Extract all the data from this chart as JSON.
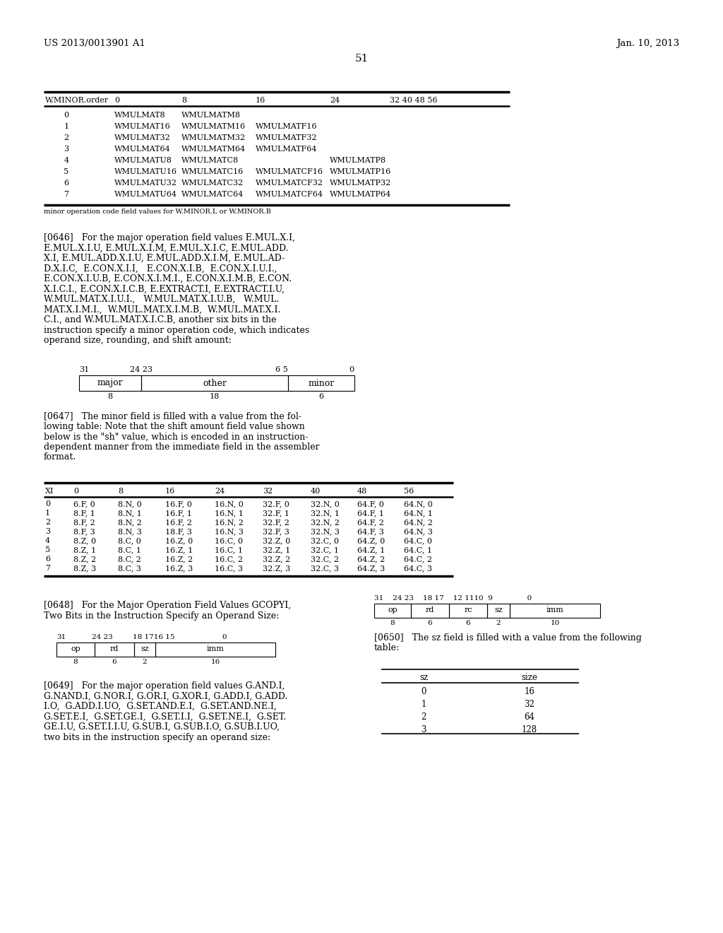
{
  "page_header_left": "US 2013/0013901 A1",
  "page_header_right": "Jan. 10, 2013",
  "page_number": "51",
  "bg_color": "#ffffff",
  "table1_caption": "minor operation code field values for W.MINOR.L or W.MINOR.B",
  "para_0646_lines": [
    "[0646]   For the major operation field values E.MUL.X.I,",
    "E.MUL.X.I.U, E.MUL.X.I.M, E.MUL.X.I.C, E.MUL.ADD.",
    "X.I, E.MUL.ADD.X.I.U, E.MUL.ADD.X.I.M, E.MUL.AD-",
    "D.X.I.C,  E.CON.X.I.I,   E.CON.X.I.B,  E.CON.X.I.U.I.,",
    "E.CON.X.I.U.B, E.CON.X.I.M.I., E.CON.X.I.M.B, E.CON.",
    "X.I.C.I., E.CON.X.I.C.B, E.EXTRACT.I, E.EXTRACT.I.U,",
    "W.MUL.MAT.X.I.U.I.,   W.MUL.MAT.X.I.U.B,   W.MUL.",
    "MAT.X.I.M.I.,  W.MUL.MAT.X.I.M.B,  W.MUL.MAT.X.I.",
    "C.I., and W.MUL.MAT.X.I.C.B, another six bits in the",
    "instruction specify a minor operation code, which indicates",
    "operand size, rounding, and shift amount:"
  ],
  "para_0647_lines": [
    "[0647]   The minor field is filled with a value from the fol-",
    "lowing table: Note that the shift amount field value shown",
    "below is the \"sh\" value, which is encoded in an instruction-",
    "dependent manner from the immediate field in the assembler",
    "format."
  ],
  "para_0648_lines": [
    "[0648]   For the Major Operation Field Values GCOPYI,",
    "Two Bits in the Instruction Specify an Operand Size:"
  ],
  "para_0650_lines": [
    "[0650]   The sz field is filled with a value from the following",
    "table:"
  ],
  "para_0649_lines": [
    "[0649]   For the major operation field values G.AND.I,",
    "G.NAND.I, G.NOR.I, G.OR.I, G.XOR.I, G.ADD.I, G.ADD.",
    "I.O,  G.ADD.I.UO,  G.SET.AND.E.I,  G.SET.AND.NE.I,",
    "G.SET.E.I,  G.SET.GE.I,  G.SET.I.I,  G.SET.NE.I,  G.SET.",
    "GE.I.U, G.SET.I.I.U, G.SUB.I, G.SUB.I.O, G.SUB.I.UO,",
    "two bits in the instruction specify an operand size:"
  ],
  "table1_rows": [
    [
      "0",
      "WMULMAT8",
      "WMULMATM8",
      "",
      "",
      ""
    ],
    [
      "1",
      "WMULMAT16",
      "WMULMATM16",
      "WMULMATF16",
      "",
      ""
    ],
    [
      "2",
      "WMULMAT32",
      "WMULMATM32",
      "WMULMATF32",
      "",
      ""
    ],
    [
      "3",
      "WMULMAT64",
      "WMULMATM64",
      "WMULMATF64",
      "",
      ""
    ],
    [
      "4",
      "WMULMATU8",
      "WMULMATC8",
      "",
      "WMULMATP8",
      ""
    ],
    [
      "5",
      "WMULMATU16",
      "WMULMATC16",
      "WMULMATCF16",
      "WMULMATP16",
      ""
    ],
    [
      "6",
      "WMULMATU32",
      "WMULMATC32",
      "WMULMATCF32",
      "WMULMATP32",
      ""
    ],
    [
      "7",
      "WMULMATU64",
      "WMULMATC64",
      "WMULMATCF64",
      "WMULMATP64",
      ""
    ]
  ],
  "table2_rows": [
    [
      "0",
      "6.F, 0",
      "8.N, 0",
      "16.F, 0",
      "16.N, 0",
      "32.F, 0",
      "32.N, 0",
      "64.F, 0",
      "64.N, 0"
    ],
    [
      "1",
      "8.F, 1",
      "8.N, 1",
      "16.F, 1",
      "16.N, 1",
      "32.F, 1",
      "32.N, 1",
      "64.F, 1",
      "64.N, 1"
    ],
    [
      "2",
      "8.F, 2",
      "8.N, 2",
      "16.F, 2",
      "16.N, 2",
      "32.F, 2",
      "32.N, 2",
      "64.F, 2",
      "64.N, 2"
    ],
    [
      "3",
      "8.F, 3",
      "8.N, 3",
      "18.F, 3",
      "16.N, 3",
      "32.F, 3",
      "32.N, 3",
      "64.F, 3",
      "64.N, 3"
    ],
    [
      "4",
      "8.Z, 0",
      "8.C, 0",
      "16.Z, 0",
      "16.C, 0",
      "32.Z, 0",
      "32.C, 0",
      "64.Z, 0",
      "64.C, 0"
    ],
    [
      "5",
      "8.Z, 1",
      "8.C, 1",
      "16.Z, 1",
      "16.C, 1",
      "32.Z, 1",
      "32.C, 1",
      "64.Z, 1",
      "64.C, 1"
    ],
    [
      "6",
      "8.Z, 2",
      "8.C, 2",
      "16.Z, 2",
      "16.C, 2",
      "32.Z, 2",
      "32.C, 2",
      "64.Z, 2",
      "64.C, 2"
    ],
    [
      "7",
      "8.Z, 3",
      "8.C, 3",
      "16.Z, 3",
      "16.C, 3",
      "32.Z, 3",
      "32.C, 3",
      "64.Z, 3",
      "64.C, 3"
    ]
  ],
  "table3_rows": [
    [
      "0",
      "16"
    ],
    [
      "1",
      "32"
    ],
    [
      "2",
      "64"
    ],
    [
      "3",
      "128"
    ]
  ]
}
